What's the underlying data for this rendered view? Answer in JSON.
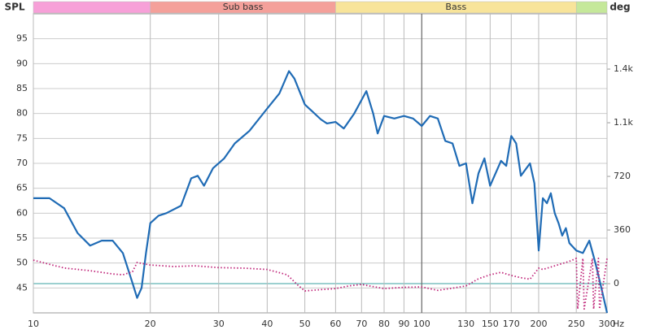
{
  "chart_data": {
    "type": "line",
    "y_axis_label": "SPL",
    "y2_axis_label": "deg",
    "x_axis_unit": "Hz",
    "log_x": true,
    "grid": true,
    "xlim": [
      10,
      300
    ],
    "xticks": [
      10,
      20,
      30,
      40,
      50,
      60,
      70,
      80,
      90,
      100,
      130,
      150,
      170,
      200,
      250,
      300
    ],
    "ylim": [
      40,
      100
    ],
    "yticks": [
      45,
      50,
      55,
      60,
      65,
      70,
      75,
      80,
      85,
      90,
      95
    ],
    "y2lim": [
      -196,
      1811
    ],
    "y2ticks": [
      0,
      360,
      720,
      {
        "value": 1080,
        "label": "1.1k"
      },
      {
        "value": 1440,
        "label": "1.4k"
      }
    ],
    "bands": [
      {
        "from": 10,
        "to": 20,
        "color": "#f7a0d8"
      },
      {
        "from": 20,
        "to": 60,
        "color": "#f4a09a",
        "label": "Sub bass"
      },
      {
        "from": 60,
        "to": 250,
        "color": "#f8e49a",
        "label": "Bass"
      },
      {
        "from": 250,
        "to": 300,
        "color": "#c5e89a"
      }
    ],
    "series": [
      {
        "color": "#1f6bb5",
        "style": "solid",
        "x": [
          10,
          11,
          12,
          13,
          14,
          15,
          16,
          17,
          18,
          18.5,
          19,
          19.5,
          20,
          21,
          22,
          24,
          25.5,
          26.5,
          27.5,
          29,
          31,
          33,
          36,
          40,
          43,
          45.5,
          47,
          50,
          55,
          57,
          60,
          63,
          67,
          72,
          75,
          77,
          80,
          85,
          90,
          95,
          100,
          105,
          110,
          115,
          120,
          125,
          130,
          135,
          140,
          145,
          150,
          160,
          165,
          170,
          175,
          180,
          190,
          195,
          200,
          205,
          210,
          215,
          220,
          225,
          230,
          235,
          240,
          250,
          260,
          270,
          280,
          290,
          300
        ],
        "values": [
          63,
          63,
          61,
          56,
          53.5,
          54.5,
          54.5,
          52,
          46,
          43,
          45,
          52,
          58,
          59.5,
          60,
          61.5,
          67,
          67.5,
          65.5,
          69,
          71,
          74,
          76.5,
          81,
          84,
          88.5,
          87,
          81.8,
          78.8,
          78,
          78.3,
          77,
          80,
          84.5,
          80,
          76,
          79.5,
          79,
          79.5,
          79,
          77.5,
          79.5,
          79,
          74.5,
          74,
          69.5,
          70,
          62,
          68,
          71,
          65.5,
          70.5,
          69.5,
          75.5,
          74,
          67.5,
          70,
          66,
          52.5,
          63,
          62,
          64,
          60,
          58,
          55.5,
          57,
          54,
          52.5,
          52,
          54.5,
          50,
          45,
          40
        ]
      },
      {
        "color": "#c0267a",
        "style": "dotted",
        "axis": "y2",
        "x": [
          10,
          11,
          12,
          14,
          16,
          17,
          18,
          18.5,
          20,
          23,
          26,
          30,
          35,
          40,
          45,
          48,
          50,
          55,
          60,
          65,
          70,
          75,
          80,
          90,
          100,
          110,
          120,
          130,
          140,
          150,
          160,
          170,
          180,
          190,
          200,
          205,
          220,
          240,
          250,
          252,
          260,
          262,
          275,
          277,
          285,
          287,
          300
        ],
        "values": [
          158,
          130,
          105,
          87,
          65,
          60,
          80,
          142,
          125,
          115,
          120,
          108,
          104,
          95,
          60,
          -10,
          -49,
          -40,
          -33,
          -15,
          -5,
          -20,
          -33,
          -25,
          -22,
          -45,
          -30,
          -15,
          33,
          60,
          76,
          55,
          40,
          30,
          104,
          95,
          120,
          150,
          170,
          -170,
          170,
          -170,
          170,
          -170,
          170,
          -170,
          170
        ]
      }
    ]
  }
}
